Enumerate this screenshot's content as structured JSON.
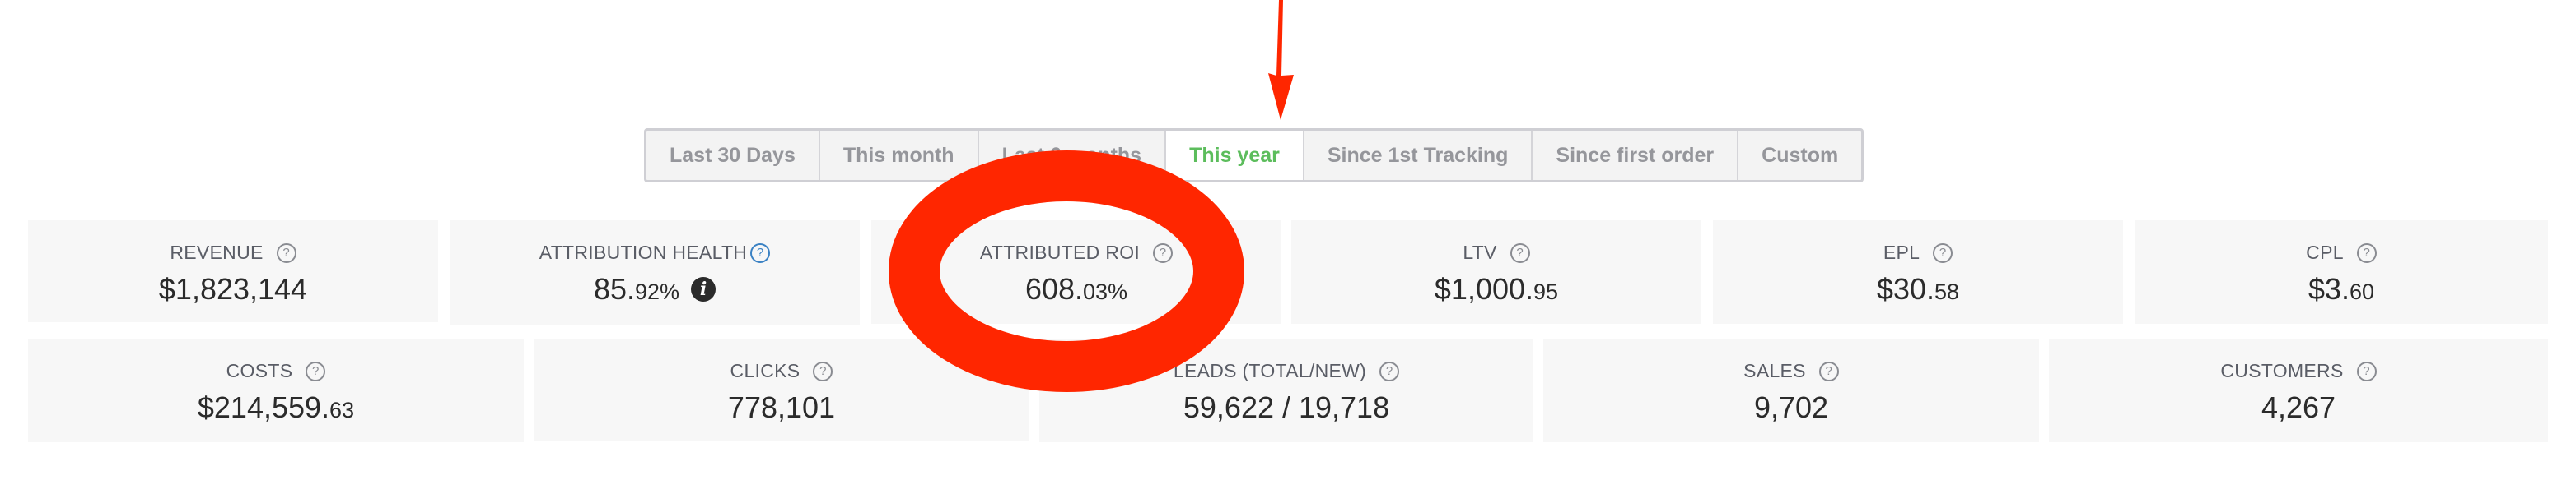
{
  "date_range_tabs": [
    {
      "label": "Last 30 Days",
      "active": false
    },
    {
      "label": "This month",
      "active": false
    },
    {
      "label": "Last 6 months",
      "active": false
    },
    {
      "label": "This year",
      "active": true
    },
    {
      "label": "Since 1st Tracking",
      "active": false
    },
    {
      "label": "Since first order",
      "active": false
    },
    {
      "label": "Custom",
      "active": false
    }
  ],
  "metrics_row1": [
    {
      "label": "REVENUE",
      "value": "$1,823,144",
      "decimal": ""
    },
    {
      "label": "ATTRIBUTION HEALTH",
      "value": "85.",
      "decimal": "92%"
    },
    {
      "label": "ATTRIBUTED ROI",
      "value": "608.",
      "decimal": "03%"
    },
    {
      "label": "LTV",
      "value": "$1,000.",
      "decimal": "95"
    },
    {
      "label": "EPL",
      "value": "$30.",
      "decimal": "58"
    },
    {
      "label": "CPL",
      "value": "$3.",
      "decimal": "60"
    }
  ],
  "metrics_row2": [
    {
      "label": "COSTS",
      "value": "$214,559.",
      "decimal": "63"
    },
    {
      "label": "CLICKS",
      "value": "778,101",
      "decimal": ""
    },
    {
      "label": "LEADS (TOTAL/NEW)",
      "value": "59,622 / 19,718",
      "decimal": ""
    },
    {
      "label": "SALES",
      "value": "9,702",
      "decimal": ""
    },
    {
      "label": "CUSTOMERS",
      "value": "4,267",
      "decimal": ""
    }
  ],
  "icons": {
    "help": "?",
    "info": "i"
  },
  "colors": {
    "active_tab": "#5cbd5c",
    "annotation": "#ff2600",
    "card_bg": "#f7f7f7"
  }
}
